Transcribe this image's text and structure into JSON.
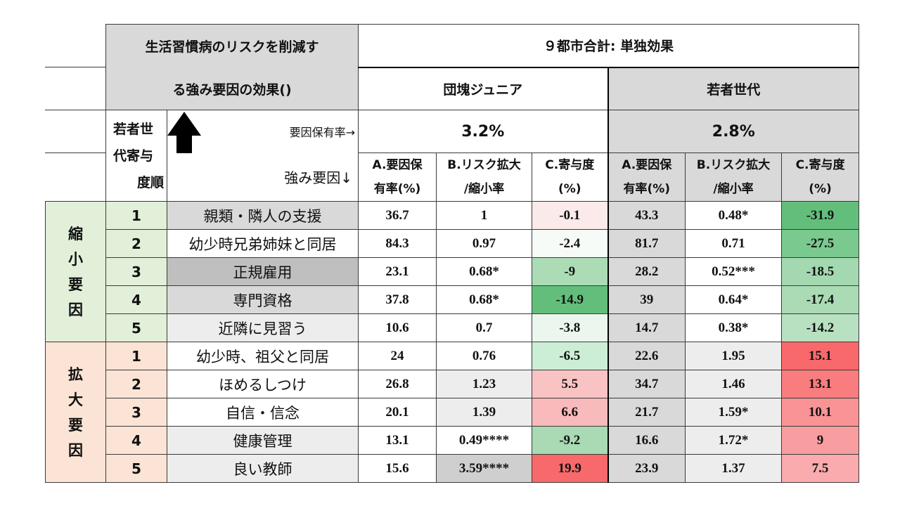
{
  "title": {
    "line1": "生活習慣病のリスクを削減す",
    "line2": "る強み要因の効果()"
  },
  "header_main": "９都市合計: 単独効果",
  "groups": [
    {
      "name": "団塊ジュニア",
      "rate": "3.2%"
    },
    {
      "name": "若者世代",
      "rate": "2.8%"
    }
  ],
  "rank_header": {
    "line1": "若者世",
    "line2": "代寄与",
    "line3": "度順"
  },
  "row_label_rate": "要因保有率→",
  "row_label_factor": "強み要因↓",
  "arrow_icon": "up-arrow-icon",
  "col_headers": [
    {
      "line1": "A.要因保",
      "line2": "有率(%)"
    },
    {
      "line1": "B.リスク拡大",
      "line2": "/縮小率"
    },
    {
      "line1": "C.寄与度",
      "line2": "(%)"
    },
    {
      "line1": "A.要因保",
      "line2": "有率(%)"
    },
    {
      "line1": "B.リスク拡大",
      "line2": "/縮小率"
    },
    {
      "line1": "C.寄与度",
      "line2": "(%)"
    }
  ],
  "sections": [
    {
      "label": [
        "縮",
        "小",
        "要",
        "因"
      ],
      "color": "#e2efd9",
      "rows": [
        {
          "rank": "1",
          "factor": "親類・隣人の支援",
          "factor_bg": "#d9d9d9",
          "cells": [
            "36.7",
            "1",
            "-0.1",
            "43.3",
            "0.48*",
            "-31.9"
          ],
          "bgs": [
            "#ffffff",
            "#ffffff",
            "#fbeaea",
            "#d9d9d9",
            "#ffffff",
            "#63be7b"
          ]
        },
        {
          "rank": "2",
          "factor": "幼少時兄弟姉妹と同居",
          "factor_bg": "#ffffff",
          "cells": [
            "84.3",
            "0.97",
            "-2.4",
            "81.7",
            "0.71",
            "-27.5"
          ],
          "bgs": [
            "#ffffff",
            "#ffffff",
            "#f7fbf8",
            "#d9d9d9",
            "#ffffff",
            "#7ac98e"
          ]
        },
        {
          "rank": "3",
          "factor": "正規雇用",
          "factor_bg": "#bfbfbf",
          "cells": [
            "23.1",
            "0.68*",
            "-9",
            "28.2",
            "0.52***",
            "-18.5"
          ],
          "bgs": [
            "#ffffff",
            "#ffffff",
            "#acdcb6",
            "#d9d9d9",
            "#ffffff",
            "#a4d8b0"
          ]
        },
        {
          "rank": "4",
          "factor": "専門資格",
          "factor_bg": "#d9d9d9",
          "cells": [
            "37.8",
            "0.68*",
            "-14.9",
            "39",
            "0.64*",
            "-17.4"
          ],
          "bgs": [
            "#ffffff",
            "#ffffff",
            "#63be7b",
            "#d9d9d9",
            "#ffffff",
            "#aadbb5"
          ]
        },
        {
          "rank": "5",
          "factor": "近隣に見習う",
          "factor_bg": "#ededed",
          "cells": [
            "10.6",
            "0.7",
            "-3.8",
            "14.7",
            "0.38*",
            "-14.2"
          ],
          "bgs": [
            "#ffffff",
            "#ffffff",
            "#eaf6ee",
            "#d9d9d9",
            "#ffffff",
            "#b8e1c1"
          ]
        }
      ]
    },
    {
      "label": [
        "拡",
        "大",
        "要",
        "因"
      ],
      "color": "#fbe4d5",
      "rows": [
        {
          "rank": "1",
          "factor": "幼少時、祖父と同居",
          "factor_bg": "#ffffff",
          "cells": [
            "24",
            "0.76",
            "-6.5",
            "22.6",
            "1.95",
            "15.1"
          ],
          "bgs": [
            "#ffffff",
            "#ffffff",
            "#cdeed6",
            "#d9d9d9",
            "#ededed",
            "#f8696b"
          ]
        },
        {
          "rank": "2",
          "factor": "ほめるしつけ",
          "factor_bg": "#ffffff",
          "cells": [
            "26.8",
            "1.23",
            "5.5",
            "34.7",
            "1.46",
            "13.1"
          ],
          "bgs": [
            "#ffffff",
            "#ededed",
            "#f9c3c4",
            "#d9d9d9",
            "#ededed",
            "#f97c7e"
          ]
        },
        {
          "rank": "3",
          "factor": "自信・信念",
          "factor_bg": "#ffffff",
          "cells": [
            "20.1",
            "1.39",
            "6.6",
            "21.7",
            "1.59*",
            "10.1"
          ],
          "bgs": [
            "#ffffff",
            "#ededed",
            "#f9babb",
            "#d9d9d9",
            "#ededed",
            "#f99395"
          ]
        },
        {
          "rank": "4",
          "factor": "健康管理",
          "factor_bg": "#ededed",
          "cells": [
            "13.1",
            "0.49****",
            "-9.2",
            "16.6",
            "1.72*",
            "9"
          ],
          "bgs": [
            "#ffffff",
            "#ffffff",
            "#a9dab4",
            "#d9d9d9",
            "#ededed",
            "#f99ea0"
          ]
        },
        {
          "rank": "5",
          "factor": "良い教師",
          "factor_bg": "#ededed",
          "cells": [
            "15.6",
            "3.59****",
            "19.9",
            "23.9",
            "1.37",
            "7.5"
          ],
          "bgs": [
            "#ffffff",
            "#cfcfcf",
            "#f8696b",
            "#d9d9d9",
            "#ededed",
            "#f9abad"
          ]
        }
      ]
    }
  ]
}
